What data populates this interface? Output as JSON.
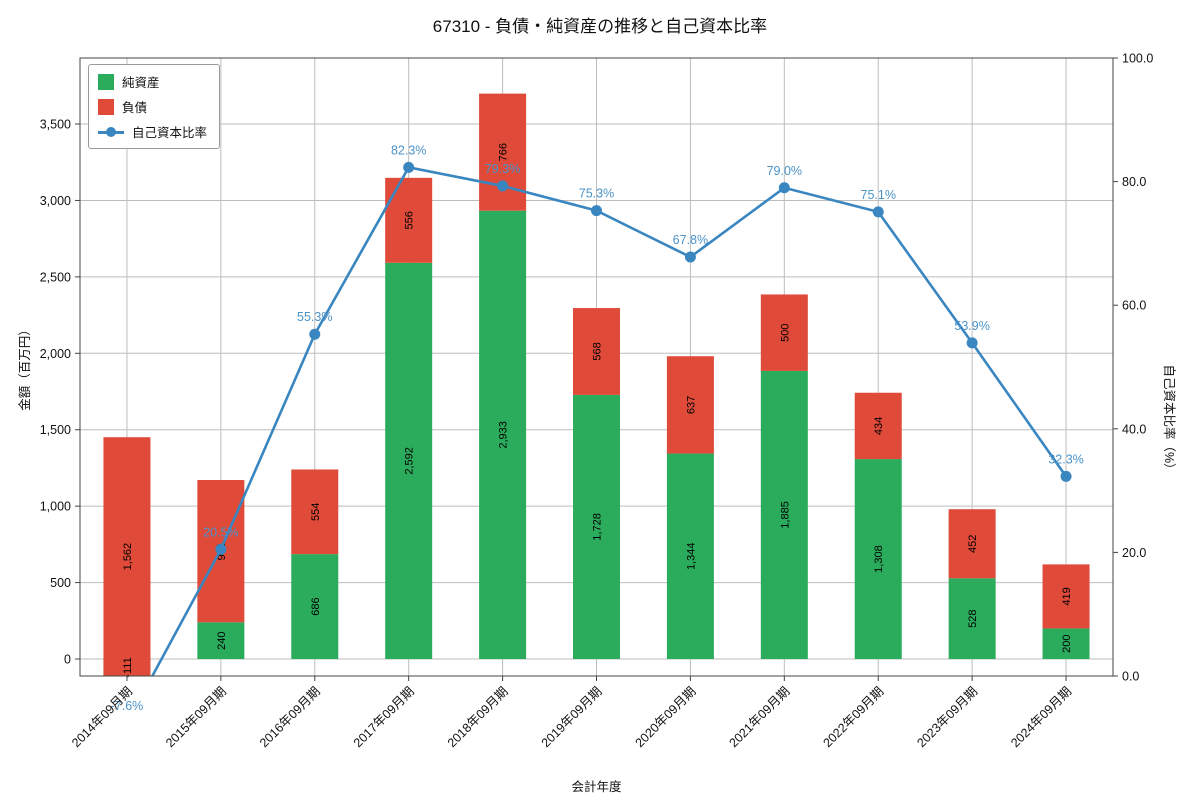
{
  "title": "67310 - 負債・純資産の推移と自己資本比率",
  "axes": {
    "x_label": "会計年度",
    "y_left_label": "金額（百万円）",
    "y_right_label": "自己資本比率（%）"
  },
  "legend": {
    "equity": "純資産",
    "debt": "負債",
    "ratio": "自己資本比率"
  },
  "colors": {
    "equity": "#2bac5c",
    "debt": "#df4a39",
    "ratio": "#3a86c0",
    "ratio_label": "#4b93c9",
    "grid": "#bdbdbd",
    "axis": "#444444",
    "bar_label": "#000000"
  },
  "chart_data": {
    "type": "bar",
    "subtype": "stacked-bar-with-line-overlay",
    "title": "67310 - 負債・純資産の推移と自己資本比率",
    "xlabel": "会計年度",
    "ylabel_left": "金額（百万円）",
    "ylabel_right": "自己資本比率（%）",
    "legend_position": "upper-left",
    "grid": true,
    "categories": [
      "2014年09月期",
      "2015年09月期",
      "2016年09月期",
      "2017年09月期",
      "2018年09月期",
      "2019年09月期",
      "2020年09月期",
      "2021年09月期",
      "2022年09月期",
      "2023年09月期",
      "2024年09月期"
    ],
    "series": [
      {
        "name": "純資産",
        "type": "bar",
        "stack": true,
        "values": [
          -111,
          240,
          686,
          2592,
          2933,
          1728,
          1344,
          1885,
          1308,
          528,
          200
        ]
      },
      {
        "name": "負債",
        "type": "bar",
        "stack": true,
        "values": [
          1562,
          931,
          554,
          556,
          766,
          568,
          637,
          500,
          434,
          452,
          419
        ]
      },
      {
        "name": "自己資本比率",
        "type": "line",
        "unit": "%",
        "values": [
          -7.6,
          20.5,
          55.3,
          82.3,
          79.3,
          75.3,
          67.8,
          79.0,
          75.1,
          53.9,
          32.3
        ]
      }
    ],
    "y_left": {
      "ticks": [
        0,
        500,
        1000,
        1500,
        2000,
        2500,
        3000,
        3500
      ],
      "min": -111.2,
      "max": 3932
    },
    "y_right": {
      "ticks": [
        0,
        20,
        40,
        60,
        80,
        100
      ],
      "min": 0,
      "max": 100
    }
  }
}
